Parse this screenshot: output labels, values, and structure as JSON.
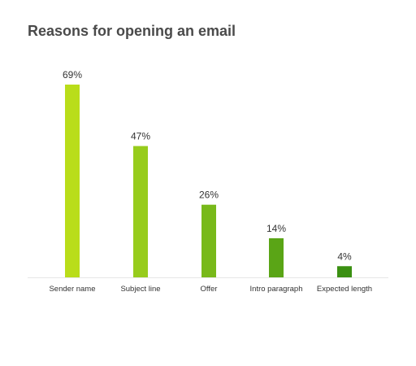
{
  "chart_data": {
    "type": "bar",
    "title": "Reasons for opening an email",
    "xlabel": "",
    "ylabel": "",
    "categories": [
      "Sender name",
      "Subject line",
      "Offer",
      "Intro paragraph",
      "Expected length"
    ],
    "values": [
      69,
      47,
      26,
      14,
      4
    ],
    "value_labels": [
      "69%",
      "47%",
      "26%",
      "14%",
      "4%"
    ],
    "colors": [
      "#b9dd1a",
      "#97cc1c",
      "#78b91a",
      "#5aa516",
      "#3b9012"
    ],
    "baseline_color": "#e6e6e6",
    "ylim": [
      0,
      69
    ],
    "grid": false,
    "legend": "none"
  }
}
